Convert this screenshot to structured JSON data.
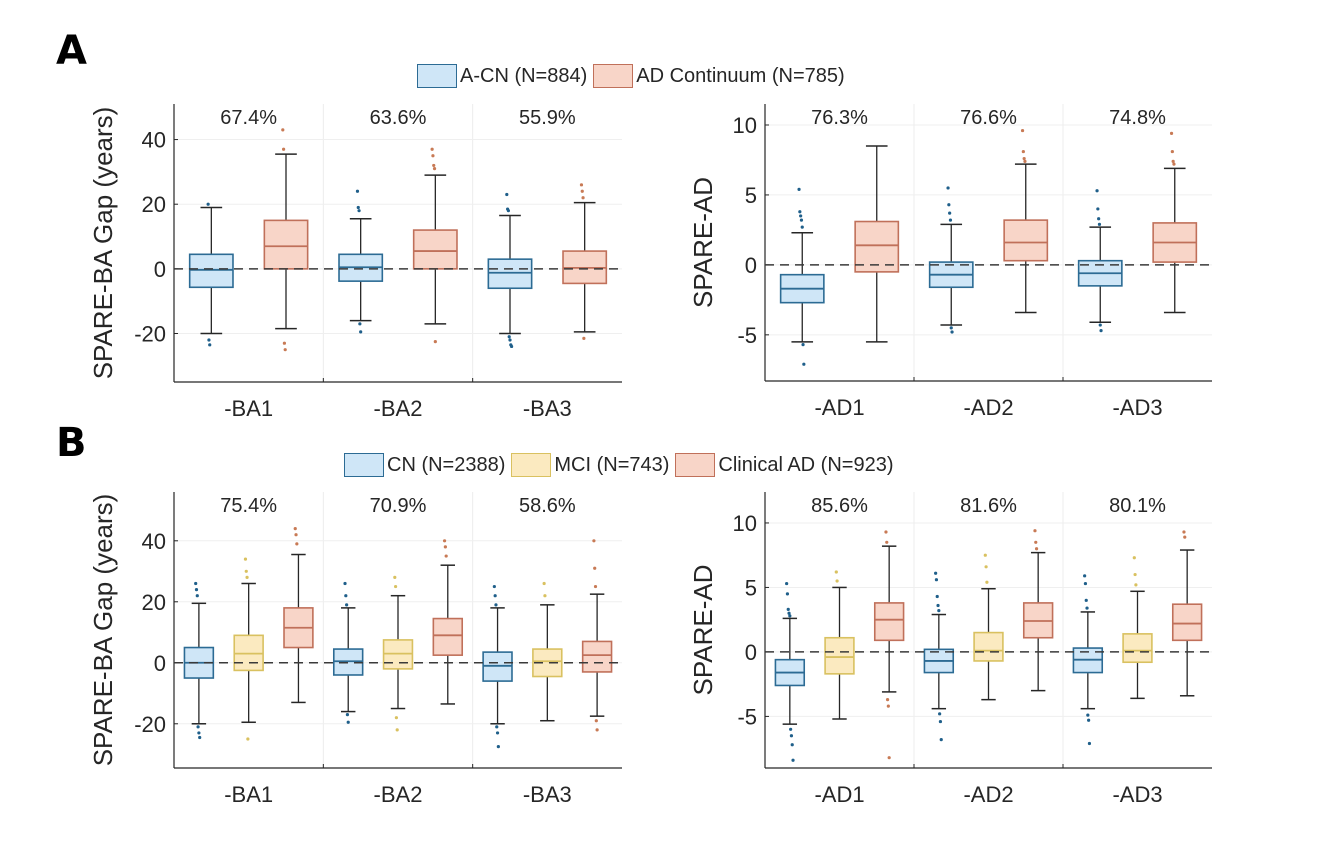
{
  "panels": [
    {
      "label": "A"
    },
    {
      "label": "B"
    }
  ],
  "legends": [
    {
      "items": [
        {
          "label": "A-CN (N=884)",
          "fill": "#cfe6f7",
          "stroke": "#2c6b94"
        },
        {
          "label": "AD Continuum (N=785)",
          "fill": "#f8d5c8",
          "stroke": "#c0705a"
        }
      ]
    },
    {
      "items": [
        {
          "label": "CN (N=2388)",
          "fill": "#cfe6f7",
          "stroke": "#2c6b94"
        },
        {
          "label": "MCI (N=743)",
          "fill": "#fbeac0",
          "stroke": "#d9c160"
        },
        {
          "label": "Clinical AD (N=923)",
          "fill": "#f8d5c8",
          "stroke": "#c0705a"
        }
      ]
    }
  ],
  "chart_data": [
    {
      "type": "box",
      "panel": "A",
      "title": "",
      "xlabel": "",
      "ylabel": "SPARE-BA Gap (years)",
      "ylim": [
        -35,
        51
      ],
      "yticks": [
        -20,
        0,
        20,
        40
      ],
      "grid": true,
      "reference_line": 0,
      "categories": [
        "-BA1",
        "-BA2",
        "-BA3"
      ],
      "annotations": [
        "67.4%",
        "63.6%",
        "55.9%"
      ],
      "series": [
        {
          "name": "A-CN (N=884)",
          "color": "#cfe6f7",
          "edge": "#2c6b94",
          "outlier_color": "#1f5f8a",
          "boxes": [
            {
              "whisker_low": -20,
              "q1": -5.7,
              "median": -0.3,
              "q3": 4.5,
              "whisker_high": 19,
              "outliers": [
                20,
                -22,
                -23.5
              ]
            },
            {
              "whisker_low": -16,
              "q1": -3.8,
              "median": 0.5,
              "q3": 4.5,
              "whisker_high": 15.5,
              "outliers": [
                24,
                19,
                18,
                -17,
                -19.5
              ]
            },
            {
              "whisker_low": -20,
              "q1": -6,
              "median": -1.2,
              "q3": 3,
              "whisker_high": 16.5,
              "outliers": [
                23,
                18.5,
                18,
                -21,
                -22,
                -23.5,
                -24
              ]
            }
          ]
        },
        {
          "name": "AD Continuum (N=785)",
          "color": "#f8d5c8",
          "edge": "#c0705a",
          "outlier_color": "#c87a55",
          "boxes": [
            {
              "whisker_low": -18.5,
              "q1": 0,
              "median": 7,
              "q3": 15,
              "whisker_high": 35.5,
              "outliers": [
                43,
                37,
                -23,
                -25
              ]
            },
            {
              "whisker_low": -17,
              "q1": 0,
              "median": 5.5,
              "q3": 12,
              "whisker_high": 29,
              "outliers": [
                37,
                35,
                32,
                31,
                -22.5
              ]
            },
            {
              "whisker_low": -19.5,
              "q1": -4.5,
              "median": 0.3,
              "q3": 5.5,
              "whisker_high": 20.5,
              "outliers": [
                26,
                24,
                22,
                -21.5
              ]
            }
          ]
        }
      ]
    },
    {
      "type": "box",
      "panel": "A",
      "title": "",
      "xlabel": "",
      "ylabel": "SPARE-AD",
      "ylim": [
        -8.3,
        11.5
      ],
      "yticks": [
        -5,
        0,
        5,
        10
      ],
      "grid": true,
      "reference_line": 0,
      "categories": [
        "-AD1",
        "-AD2",
        "-AD3"
      ],
      "annotations": [
        "76.3%",
        "76.6%",
        "74.8%"
      ],
      "series": [
        {
          "name": "A-CN (N=884)",
          "color": "#cfe6f7",
          "edge": "#2c6b94",
          "outlier_color": "#1f5f8a",
          "boxes": [
            {
              "whisker_low": -5.5,
              "q1": -2.7,
              "median": -1.7,
              "q3": -0.7,
              "whisker_high": 2.3,
              "outliers": [
                5.4,
                3.8,
                3.5,
                3.2,
                2.7,
                -5.7,
                -7.1
              ]
            },
            {
              "whisker_low": -4.3,
              "q1": -1.6,
              "median": -0.7,
              "q3": 0.2,
              "whisker_high": 2.9,
              "outliers": [
                5.5,
                4.3,
                3.7,
                3.2,
                -4.5,
                -4.8
              ]
            },
            {
              "whisker_low": -4.1,
              "q1": -1.5,
              "median": -0.6,
              "q3": 0.3,
              "whisker_high": 2.7,
              "outliers": [
                5.3,
                4.0,
                3.3,
                2.9,
                -4.3,
                -4.7
              ]
            }
          ]
        },
        {
          "name": "AD Continuum (N=785)",
          "color": "#f8d5c8",
          "edge": "#c0705a",
          "outlier_color": "#c87a55",
          "boxes": [
            {
              "whisker_low": -5.5,
              "q1": -0.5,
              "median": 1.4,
              "q3": 3.1,
              "whisker_high": 8.5,
              "outliers": []
            },
            {
              "whisker_low": -3.4,
              "q1": 0.3,
              "median": 1.6,
              "q3": 3.2,
              "whisker_high": 7.2,
              "outliers": [
                9.6,
                8.1,
                7.6,
                7.4
              ]
            },
            {
              "whisker_low": -3.4,
              "q1": 0.2,
              "median": 1.6,
              "q3": 3.0,
              "whisker_high": 6.9,
              "outliers": [
                9.4,
                8.1,
                7.4,
                7.2
              ]
            }
          ]
        }
      ]
    },
    {
      "type": "box",
      "panel": "B",
      "title": "",
      "xlabel": "",
      "ylabel": "SPARE-BA Gap (years)",
      "ylim": [
        -34.5,
        56
      ],
      "yticks": [
        -20,
        0,
        20,
        40
      ],
      "grid": true,
      "reference_line": 0,
      "categories": [
        "-BA1",
        "-BA2",
        "-BA3"
      ],
      "annotations": [
        "75.4%",
        "70.9%",
        "58.6%"
      ],
      "series": [
        {
          "name": "CN (N=2388)",
          "color": "#cfe6f7",
          "edge": "#2c6b94",
          "outlier_color": "#1f5f8a",
          "boxes": [
            {
              "whisker_low": -20,
              "q1": -5,
              "median": 0,
              "q3": 5,
              "whisker_high": 19.5,
              "outliers": [
                26,
                24,
                22,
                -21,
                -23,
                -24.5
              ]
            },
            {
              "whisker_low": -16,
              "q1": -4,
              "median": 0.5,
              "q3": 4.5,
              "whisker_high": 18,
              "outliers": [
                26,
                22,
                19,
                -17,
                -19.5
              ]
            },
            {
              "whisker_low": -20,
              "q1": -6,
              "median": -1,
              "q3": 3.5,
              "whisker_high": 18,
              "outliers": [
                25,
                22,
                19,
                -21,
                -23,
                -27.5
              ]
            }
          ]
        },
        {
          "name": "MCI (N=743)",
          "color": "#fbeac0",
          "edge": "#d9c160",
          "outlier_color": "#d9c160",
          "boxes": [
            {
              "whisker_low": -19.5,
              "q1": -2.5,
              "median": 3,
              "q3": 9,
              "whisker_high": 26,
              "outliers": [
                34,
                30,
                28,
                -25
              ]
            },
            {
              "whisker_low": -15,
              "q1": -2,
              "median": 3,
              "q3": 7.5,
              "whisker_high": 22,
              "outliers": [
                28,
                25,
                -18,
                -22
              ]
            },
            {
              "whisker_low": -19,
              "q1": -4.5,
              "median": 0.5,
              "q3": 4.5,
              "whisker_high": 19,
              "outliers": [
                26,
                22
              ]
            }
          ]
        },
        {
          "name": "Clinical AD (N=923)",
          "color": "#f8d5c8",
          "edge": "#c0705a",
          "outlier_color": "#c87a55",
          "boxes": [
            {
              "whisker_low": -13,
              "q1": 5,
              "median": 11.5,
              "q3": 18,
              "whisker_high": 35.5,
              "outliers": [
                44,
                42,
                39
              ]
            },
            {
              "whisker_low": -13.5,
              "q1": 2.5,
              "median": 9,
              "q3": 14.5,
              "whisker_high": 32,
              "outliers": [
                40,
                38,
                35
              ]
            },
            {
              "whisker_low": -17.5,
              "q1": -3,
              "median": 2.5,
              "q3": 7,
              "whisker_high": 22.5,
              "outliers": [
                40,
                31,
                25,
                -19,
                -22
              ]
            }
          ]
        }
      ]
    },
    {
      "type": "box",
      "panel": "B",
      "title": "",
      "xlabel": "",
      "ylabel": "SPARE-AD",
      "ylim": [
        -9,
        12.4
      ],
      "yticks": [
        -5,
        0,
        5,
        10
      ],
      "grid": true,
      "reference_line": 0,
      "categories": [
        "-AD1",
        "-AD2",
        "-AD3"
      ],
      "annotations": [
        "85.6%",
        "81.6%",
        "80.1%"
      ],
      "series": [
        {
          "name": "CN (N=2388)",
          "color": "#cfe6f7",
          "edge": "#2c6b94",
          "outlier_color": "#1f5f8a",
          "boxes": [
            {
              "whisker_low": -5.6,
              "q1": -2.6,
              "median": -1.6,
              "q3": -0.6,
              "whisker_high": 2.6,
              "outliers": [
                5.3,
                4.5,
                3.3,
                3,
                2.8,
                -6,
                -6.5,
                -7.2,
                -8.4
              ]
            },
            {
              "whisker_low": -4.4,
              "q1": -1.6,
              "median": -0.7,
              "q3": 0.2,
              "whisker_high": 2.9,
              "outliers": [
                6.1,
                5.6,
                4.3,
                3.6,
                3.2,
                -4.8,
                -5.4,
                -6.8
              ]
            },
            {
              "whisker_low": -4.4,
              "q1": -1.6,
              "median": -0.6,
              "q3": 0.3,
              "whisker_high": 3.1,
              "outliers": [
                5.9,
                5.3,
                4.0,
                3.4,
                -4.9,
                -5.3,
                -7.1
              ]
            }
          ]
        },
        {
          "name": "MCI (N=743)",
          "color": "#fbeac0",
          "edge": "#d9c160",
          "outlier_color": "#d9c160",
          "boxes": [
            {
              "whisker_low": -5.2,
              "q1": -1.7,
              "median": -0.4,
              "q3": 1.1,
              "whisker_high": 5,
              "outliers": [
                6.2,
                5.5
              ]
            },
            {
              "whisker_low": -3.7,
              "q1": -0.7,
              "median": 0.1,
              "q3": 1.5,
              "whisker_high": 4.9,
              "outliers": [
                7.5,
                6.6,
                5.4
              ]
            },
            {
              "whisker_low": -3.6,
              "q1": -0.8,
              "median": 0.1,
              "q3": 1.4,
              "whisker_high": 4.7,
              "outliers": [
                7.3,
                6.0,
                5.2
              ]
            }
          ]
        },
        {
          "name": "Clinical AD (N=923)",
          "color": "#f8d5c8",
          "edge": "#c0705a",
          "outlier_color": "#c87a55",
          "boxes": [
            {
              "whisker_low": -3.1,
              "q1": 0.9,
              "median": 2.5,
              "q3": 3.8,
              "whisker_high": 8.2,
              "outliers": [
                9.3,
                8.5,
                -3.7,
                -4.2,
                -8.2
              ]
            },
            {
              "whisker_low": -3.0,
              "q1": 1.1,
              "median": 2.4,
              "q3": 3.8,
              "whisker_high": 7.7,
              "outliers": [
                9.4,
                8.5,
                8.0
              ]
            },
            {
              "whisker_low": -3.4,
              "q1": 0.9,
              "median": 2.2,
              "q3": 3.7,
              "whisker_high": 7.9,
              "outliers": [
                9.3,
                8.9
              ]
            }
          ]
        }
      ]
    }
  ]
}
